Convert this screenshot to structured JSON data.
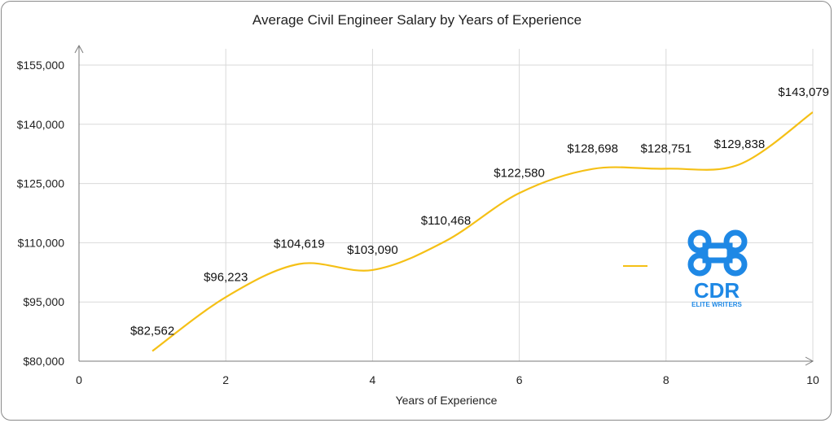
{
  "chart_data": {
    "type": "line",
    "title": "Average Civil Engineer Salary by Years of Experience",
    "xlabel": "Years of Experience",
    "ylabel": "",
    "xlim": [
      0,
      10
    ],
    "ylim": [
      80000,
      155000
    ],
    "x_ticks": [
      0,
      2,
      4,
      6,
      8,
      10
    ],
    "y_ticks": [
      80000,
      95000,
      110000,
      125000,
      140000,
      155000
    ],
    "y_tick_labels": [
      "$80,000",
      "$95,000",
      "$110,000",
      "$125,000",
      "$140,000",
      "$155,000"
    ],
    "grid": true,
    "legend": "right",
    "series": [
      {
        "color": "#F5C016",
        "x": [
          1,
          2,
          3,
          4,
          5,
          6,
          7,
          8,
          9,
          10
        ],
        "values": [
          82562,
          96223,
          104619,
          103090,
          110468,
          122580,
          128698,
          128751,
          129838,
          143079
        ],
        "labels": [
          "$82,562",
          "$96,223",
          "$104,619",
          "$103,090",
          "$110,468",
          "$122,580",
          "$128,698",
          "$128,751",
          "$129,838",
          "$143,079"
        ]
      }
    ]
  },
  "logo": {
    "text": "CDR",
    "subtext": "ELITE WRITERS",
    "color": "#1E88E5",
    "icon": "command-key-icon"
  }
}
